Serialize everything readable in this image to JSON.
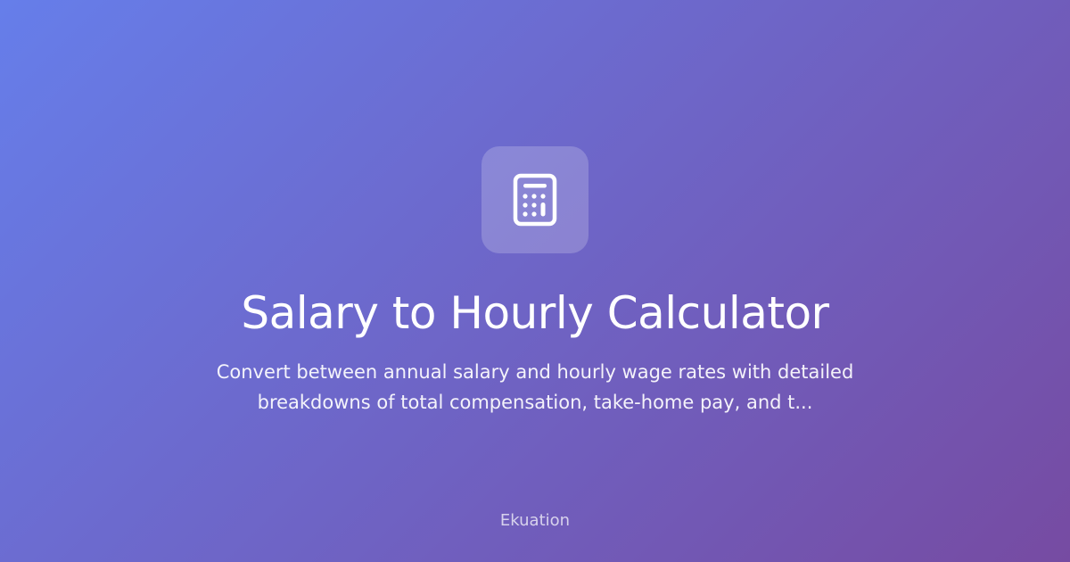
{
  "icon": "calculator-icon",
  "title": "Salary to Hourly Calculator",
  "description": "Convert between annual salary and hourly wage rates with detailed breakdowns of total compensation, take-home pay, and t...",
  "brand": "Ekuation",
  "colors": {
    "gradient_start": "#667eea",
    "gradient_end": "#764ba2"
  }
}
